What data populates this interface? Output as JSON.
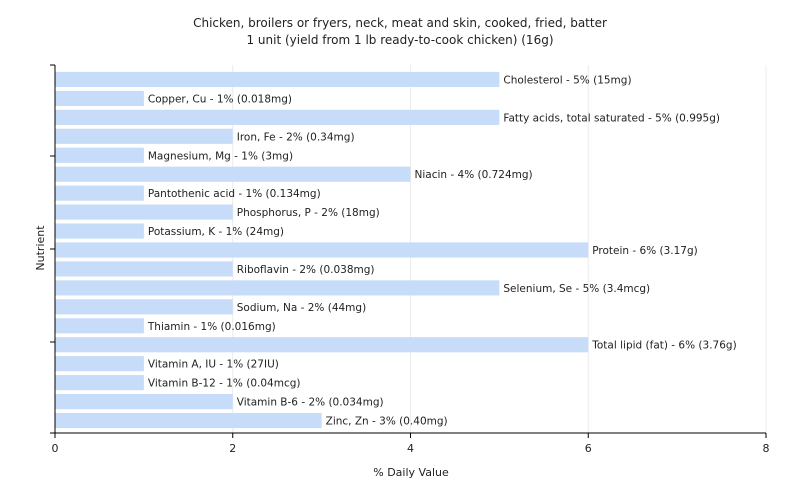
{
  "chart_data": {
    "type": "bar",
    "orientation": "horizontal",
    "title": "Chicken, broilers or fryers, neck, meat and skin, cooked, fried, batter",
    "subtitle": "1 unit (yield from 1 lb ready-to-cook chicken) (16g)",
    "xlabel": "% Daily Value",
    "ylabel": "Nutrient",
    "xlim": [
      0,
      8
    ],
    "xticks": [
      0,
      2,
      4,
      6,
      8
    ],
    "grid": true,
    "bar_color": "#c6dcf9",
    "categories": [
      "Cholesterol",
      "Copper, Cu",
      "Fatty acids, total saturated",
      "Iron, Fe",
      "Magnesium, Mg",
      "Niacin",
      "Pantothenic acid",
      "Phosphorus, P",
      "Potassium, K",
      "Protein",
      "Riboflavin",
      "Selenium, Se",
      "Sodium, Na",
      "Thiamin",
      "Total lipid (fat)",
      "Vitamin A, IU",
      "Vitamin B-12",
      "Vitamin B-6",
      "Zinc, Zn"
    ],
    "values": [
      5,
      1,
      5,
      2,
      1,
      4,
      1,
      2,
      1,
      6,
      2,
      5,
      2,
      1,
      6,
      1,
      1,
      2,
      3
    ],
    "labels": [
      "Cholesterol - 5% (15mg)",
      "Copper, Cu - 1% (0.018mg)",
      "Fatty acids, total saturated - 5% (0.995g)",
      "Iron, Fe - 2% (0.34mg)",
      "Magnesium, Mg - 1% (3mg)",
      "Niacin - 4% (0.724mg)",
      "Pantothenic acid - 1% (0.134mg)",
      "Phosphorus, P - 2% (18mg)",
      "Potassium, K - 1% (24mg)",
      "Protein - 6% (3.17g)",
      "Riboflavin - 2% (0.038mg)",
      "Selenium, Se - 5% (3.4mcg)",
      "Sodium, Na - 2% (44mg)",
      "Thiamin - 1% (0.016mg)",
      "Total lipid (fat) - 6% (3.76g)",
      "Vitamin A, IU - 1% (27IU)",
      "Vitamin B-12 - 1% (0.04mcg)",
      "Vitamin B-6 - 2% (0.034mg)",
      "Zinc, Zn - 3% (0.40mg)"
    ]
  }
}
